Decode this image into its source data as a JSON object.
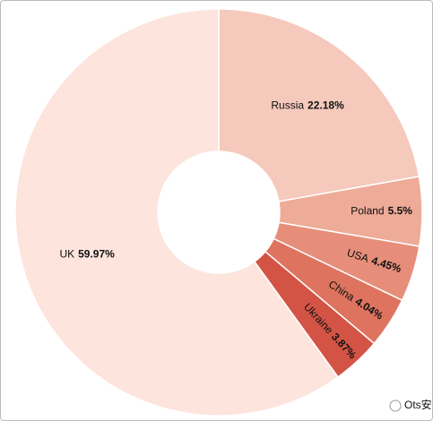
{
  "chart_data": {
    "type": "donut",
    "categories": [
      "Russia",
      "Poland",
      "USA",
      "China",
      "Ukraine",
      "UK"
    ],
    "values": [
      22.18,
      5.5,
      4.45,
      4.04,
      3.87,
      59.97
    ],
    "value_labels": [
      "22.18%",
      "5.5%",
      "4.45%",
      "4.04%",
      "3.87%",
      "59.97%"
    ],
    "colors": [
      "#f5c9bc",
      "#eeab98",
      "#e68e7a",
      "#de745f",
      "#d35445",
      "#fde4dd"
    ]
  },
  "watermark": "Ots安全"
}
